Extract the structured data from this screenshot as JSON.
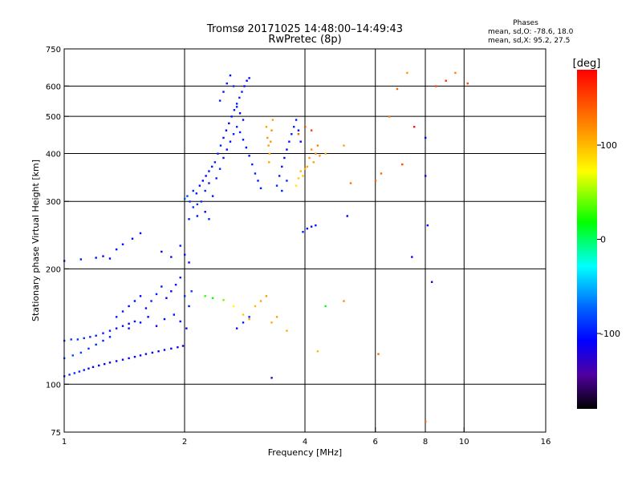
{
  "title_line1": "Tromsø 20171025 14:48:00–14:49:43",
  "title_line2": "RwPretec (8p)",
  "phases": {
    "heading": "Phases",
    "line_o": "mean, sd,O: -78.6, 18.0",
    "line_x": "mean, sd,X:  95.2, 27.5"
  },
  "colorbar": {
    "label": "[deg]",
    "ticks": [
      {
        "value": 100,
        "label": "100"
      },
      {
        "value": 0,
        "label": "0"
      },
      {
        "value": -100,
        "label": "-100"
      }
    ],
    "range": [
      -180,
      180
    ]
  },
  "chart_data": {
    "type": "scatter",
    "title": "Tromsø 20171025 14:48:00–14:49:43",
    "subtitle": "RwPretec (8p)",
    "xlabel": "Frequency [MHz]",
    "ylabel": "Stationary phase Virtual Height [km]",
    "xscale": "log",
    "yscale": "log",
    "xlim": [
      1,
      16
    ],
    "ylim": [
      75,
      750
    ],
    "x_ticks": [
      {
        "value": 1,
        "label": "1"
      },
      {
        "value": 2,
        "label": "2"
      },
      {
        "value": 4,
        "label": "4"
      },
      {
        "value": 6,
        "label": "6"
      },
      {
        "value": 8,
        "label": "8"
      },
      {
        "value": 10,
        "label": "10"
      },
      {
        "value": 16,
        "label": "16"
      }
    ],
    "x_grid": [
      2,
      4,
      6,
      8,
      10
    ],
    "y_ticks": [
      {
        "value": 75,
        "label": "75"
      },
      {
        "value": 100,
        "label": "100"
      },
      {
        "value": 200,
        "label": "200"
      },
      {
        "value": 300,
        "label": "300"
      },
      {
        "value": 400,
        "label": "400"
      },
      {
        "value": 500,
        "label": "500"
      },
      {
        "value": 600,
        "label": "600"
      },
      {
        "value": 750,
        "label": "750"
      }
    ],
    "y_grid": [
      100,
      200,
      300,
      400,
      500,
      600
    ],
    "color_meaning": "phase [deg]",
    "points": [
      [
        1.0,
        105,
        -95
      ],
      [
        1.03,
        106,
        -92
      ],
      [
        1.06,
        107,
        -90
      ],
      [
        1.09,
        108,
        -95
      ],
      [
        1.12,
        109,
        -100
      ],
      [
        1.15,
        110,
        -105
      ],
      [
        1.18,
        111,
        -110
      ],
      [
        1.22,
        112,
        -112
      ],
      [
        1.26,
        113,
        -110
      ],
      [
        1.3,
        114,
        -115
      ],
      [
        1.35,
        115,
        -118
      ],
      [
        1.4,
        116,
        -115
      ],
      [
        1.45,
        117,
        -112
      ],
      [
        1.5,
        118,
        -115
      ],
      [
        1.55,
        119,
        -118
      ],
      [
        1.6,
        120,
        -115
      ],
      [
        1.66,
        121,
        -112
      ],
      [
        1.72,
        122,
        -110
      ],
      [
        1.78,
        123,
        -112
      ],
      [
        1.85,
        124,
        -115
      ],
      [
        1.92,
        125,
        -118
      ],
      [
        1.98,
        126,
        -115
      ],
      [
        1.0,
        130,
        -85
      ],
      [
        1.04,
        131,
        -88
      ],
      [
        1.08,
        131,
        -90
      ],
      [
        1.12,
        132,
        -92
      ],
      [
        1.16,
        133,
        -95
      ],
      [
        1.2,
        134,
        -98
      ],
      [
        1.25,
        136,
        -100
      ],
      [
        1.3,
        138,
        -103
      ],
      [
        1.35,
        140,
        -105
      ],
      [
        1.4,
        142,
        -108
      ],
      [
        1.45,
        144,
        -110
      ],
      [
        1.5,
        146,
        -105
      ],
      [
        1.0,
        117,
        -80
      ],
      [
        1.05,
        119,
        -82
      ],
      [
        1.1,
        121,
        -85
      ],
      [
        1.15,
        124,
        -90
      ],
      [
        1.2,
        127,
        -95
      ],
      [
        1.25,
        130,
        -98
      ],
      [
        1.3,
        133,
        -100
      ],
      [
        1.35,
        150,
        -100
      ],
      [
        1.4,
        155,
        -102
      ],
      [
        1.45,
        160,
        -105
      ],
      [
        1.5,
        165,
        -108
      ],
      [
        1.55,
        170,
        -110
      ],
      [
        1.6,
        158,
        -105
      ],
      [
        1.65,
        165,
        -100
      ],
      [
        1.7,
        172,
        -98
      ],
      [
        1.75,
        180,
        -102
      ],
      [
        1.8,
        168,
        -108
      ],
      [
        1.85,
        175,
        -110
      ],
      [
        1.9,
        182,
        -105
      ],
      [
        1.95,
        190,
        -102
      ],
      [
        2.0,
        170,
        -95
      ],
      [
        2.05,
        160,
        -100
      ],
      [
        2.08,
        175,
        -90
      ],
      [
        1.45,
        140,
        -108
      ],
      [
        1.55,
        145,
        -106
      ],
      [
        1.62,
        150,
        -110
      ],
      [
        1.7,
        142,
        -112
      ],
      [
        1.78,
        148,
        -108
      ],
      [
        1.88,
        152,
        -104
      ],
      [
        1.95,
        146,
        -106
      ],
      [
        2.02,
        140,
        -110
      ],
      [
        1.0,
        210,
        -95
      ],
      [
        1.1,
        212,
        -100
      ],
      [
        1.2,
        214,
        -105
      ],
      [
        1.25,
        216,
        -108
      ],
      [
        1.3,
        213,
        -110
      ],
      [
        1.35,
        225,
        -108
      ],
      [
        1.4,
        232,
        -105
      ],
      [
        1.48,
        240,
        -110
      ],
      [
        1.55,
        248,
        -108
      ],
      [
        1.75,
        222,
        -110
      ],
      [
        1.85,
        215,
        -105
      ],
      [
        1.95,
        230,
        -100
      ],
      [
        2.0,
        218,
        -105
      ],
      [
        2.05,
        208,
        -110
      ],
      [
        2.0,
        305,
        -80
      ],
      [
        2.03,
        310,
        -85
      ],
      [
        2.06,
        300,
        -90
      ],
      [
        2.1,
        320,
        -95
      ],
      [
        2.14,
        315,
        -100
      ],
      [
        2.18,
        330,
        -105
      ],
      [
        2.22,
        340,
        -110
      ],
      [
        2.26,
        350,
        -108
      ],
      [
        2.3,
        360,
        -105
      ],
      [
        2.34,
        370,
        -100
      ],
      [
        2.38,
        380,
        -98
      ],
      [
        2.42,
        400,
        -95
      ],
      [
        2.46,
        420,
        -100
      ],
      [
        2.5,
        440,
        -105
      ],
      [
        2.54,
        460,
        -108
      ],
      [
        2.58,
        480,
        -110
      ],
      [
        2.62,
        500,
        -105
      ],
      [
        2.66,
        520,
        -100
      ],
      [
        2.7,
        540,
        -98
      ],
      [
        2.74,
        560,
        -95
      ],
      [
        2.78,
        580,
        -100
      ],
      [
        2.82,
        600,
        -105
      ],
      [
        2.86,
        620,
        -108
      ],
      [
        2.9,
        630,
        -110
      ],
      [
        2.1,
        290,
        -90
      ],
      [
        2.15,
        295,
        -88
      ],
      [
        2.2,
        300,
        -92
      ],
      [
        2.25,
        320,
        -96
      ],
      [
        2.3,
        335,
        -100
      ],
      [
        2.35,
        310,
        -104
      ],
      [
        2.4,
        345,
        -100
      ],
      [
        2.45,
        365,
        -98
      ],
      [
        2.5,
        390,
        -102
      ],
      [
        2.55,
        410,
        -106
      ],
      [
        2.6,
        430,
        -104
      ],
      [
        2.65,
        450,
        -100
      ],
      [
        2.7,
        470,
        -96
      ],
      [
        2.75,
        455,
        -98
      ],
      [
        2.8,
        435,
        -102
      ],
      [
        2.85,
        415,
        -106
      ],
      [
        2.9,
        395,
        -104
      ],
      [
        2.95,
        375,
        -100
      ],
      [
        3.0,
        355,
        -98
      ],
      [
        3.05,
        340,
        -102
      ],
      [
        3.1,
        325,
        -100
      ],
      [
        2.45,
        550,
        -100
      ],
      [
        2.5,
        580,
        -105
      ],
      [
        2.55,
        610,
        -100
      ],
      [
        2.6,
        640,
        -110
      ],
      [
        2.65,
        600,
        -95
      ],
      [
        2.7,
        530,
        -100
      ],
      [
        2.75,
        510,
        -110
      ],
      [
        2.8,
        490,
        -105
      ],
      [
        3.2,
        470,
        110
      ],
      [
        3.22,
        440,
        115
      ],
      [
        3.24,
        420,
        112
      ],
      [
        3.26,
        400,
        108
      ],
      [
        3.28,
        430,
        115
      ],
      [
        3.3,
        460,
        118
      ],
      [
        3.32,
        490,
        112
      ],
      [
        3.25,
        380,
        110
      ],
      [
        3.4,
        330,
        -95
      ],
      [
        3.45,
        350,
        -100
      ],
      [
        3.5,
        370,
        -105
      ],
      [
        3.55,
        390,
        -108
      ],
      [
        3.6,
        410,
        -110
      ],
      [
        3.65,
        430,
        -105
      ],
      [
        3.7,
        450,
        -100
      ],
      [
        3.75,
        470,
        -98
      ],
      [
        3.8,
        490,
        -102
      ],
      [
        3.85,
        460,
        -105
      ],
      [
        3.9,
        430,
        -108
      ],
      [
        3.5,
        320,
        -100
      ],
      [
        3.6,
        340,
        -95
      ],
      [
        3.8,
        330,
        80
      ],
      [
        3.85,
        345,
        90
      ],
      [
        3.9,
        360,
        100
      ],
      [
        3.95,
        350,
        95
      ],
      [
        4.0,
        365,
        105
      ],
      [
        4.05,
        370,
        110
      ],
      [
        4.1,
        390,
        115
      ],
      [
        4.15,
        410,
        120
      ],
      [
        4.2,
        380,
        112
      ],
      [
        4.25,
        400,
        118
      ],
      [
        4.3,
        420,
        125
      ],
      [
        4.35,
        395,
        115
      ],
      [
        3.85,
        450,
        140
      ],
      [
        4.0,
        470,
        150
      ],
      [
        4.15,
        460,
        155
      ],
      [
        3.95,
        250,
        -100
      ],
      [
        4.05,
        255,
        -110
      ],
      [
        4.15,
        258,
        -105
      ],
      [
        4.25,
        260,
        -100
      ],
      [
        2.25,
        170,
        30
      ],
      [
        2.35,
        168,
        20
      ],
      [
        2.5,
        166,
        40
      ],
      [
        2.65,
        160,
        70
      ],
      [
        2.8,
        152,
        95
      ],
      [
        2.9,
        148,
        110
      ],
      [
        2.7,
        140,
        -105
      ],
      [
        2.8,
        145,
        -100
      ],
      [
        2.9,
        150,
        -95
      ],
      [
        3.0,
        160,
        100
      ],
      [
        3.1,
        165,
        110
      ],
      [
        3.2,
        170,
        115
      ],
      [
        3.3,
        145,
        108
      ],
      [
        3.4,
        150,
        112
      ],
      [
        3.3,
        104,
        -130
      ],
      [
        3.6,
        138,
        105
      ],
      [
        4.3,
        122,
        100
      ],
      [
        2.05,
        270,
        -100
      ],
      [
        2.15,
        275,
        -105
      ],
      [
        2.25,
        282,
        -110
      ],
      [
        2.3,
        270,
        -95
      ],
      [
        4.5,
        400,
        100
      ],
      [
        5.0,
        420,
        110
      ],
      [
        5.2,
        335,
        130
      ],
      [
        6.0,
        340,
        140
      ],
      [
        6.2,
        355,
        135
      ],
      [
        6.5,
        500,
        130
      ],
      [
        6.8,
        590,
        140
      ],
      [
        7.0,
        375,
        150
      ],
      [
        7.2,
        650,
        115
      ],
      [
        8.0,
        350,
        -115
      ],
      [
        8.1,
        260,
        -110
      ],
      [
        8.3,
        185,
        -120
      ],
      [
        8.0,
        440,
        -110
      ],
      [
        7.5,
        470,
        170
      ],
      [
        8.0,
        80,
        135
      ],
      [
        8.5,
        600,
        150
      ],
      [
        9.0,
        620,
        160
      ],
      [
        9.5,
        650,
        125
      ],
      [
        10.2,
        610,
        150
      ],
      [
        6.1,
        120,
        135
      ],
      [
        5.0,
        165,
        120
      ],
      [
        5.1,
        275,
        -110
      ],
      [
        7.4,
        215,
        -115
      ],
      [
        4.5,
        160,
        15
      ]
    ]
  }
}
